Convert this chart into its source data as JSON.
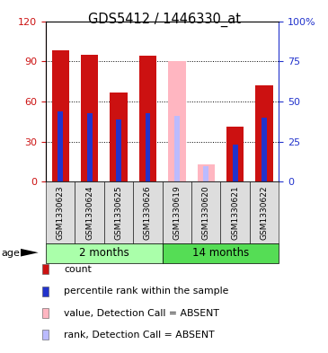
{
  "title": "GDS5412 / 1446330_at",
  "samples": [
    "GSM1330623",
    "GSM1330624",
    "GSM1330625",
    "GSM1330626",
    "GSM1330619",
    "GSM1330620",
    "GSM1330621",
    "GSM1330622"
  ],
  "left_ylim": [
    0,
    120
  ],
  "right_ylim": [
    0,
    100
  ],
  "left_yticks": [
    0,
    30,
    60,
    90,
    120
  ],
  "right_yticks": [
    0,
    25,
    50,
    75,
    100
  ],
  "right_yticklabels": [
    "0",
    "25",
    "50",
    "75",
    "100%"
  ],
  "bar_width": 0.6,
  "rank_bar_width": 0.18,
  "count_values": [
    98,
    95,
    67,
    94,
    0,
    0,
    41,
    72
  ],
  "rank_values": [
    44,
    43,
    39,
    43,
    0,
    0,
    23,
    40
  ],
  "absent_value_values": [
    0,
    0,
    0,
    0,
    90,
    13,
    0,
    0
  ],
  "absent_rank_values": [
    0,
    0,
    0,
    0,
    41,
    10,
    0,
    0
  ],
  "is_absent": [
    false,
    false,
    false,
    false,
    true,
    true,
    false,
    false
  ],
  "count_color": "#CC1111",
  "rank_color": "#2233CC",
  "absent_value_color": "#FFB6C1",
  "absent_rank_color": "#BBBBFF",
  "legend_items": [
    {
      "label": "count",
      "color": "#CC1111"
    },
    {
      "label": "percentile rank within the sample",
      "color": "#2233CC"
    },
    {
      "label": "value, Detection Call = ABSENT",
      "color": "#FFB6C1"
    },
    {
      "label": "rank, Detection Call = ABSENT",
      "color": "#BBBBFF"
    }
  ],
  "age_label": "age",
  "tick_label_color_left": "#CC1111",
  "tick_label_color_right": "#2233CC",
  "group_left_color": "#AAFFAA",
  "group_right_color": "#55DD55",
  "gray_box_color": "#DDDDDD"
}
